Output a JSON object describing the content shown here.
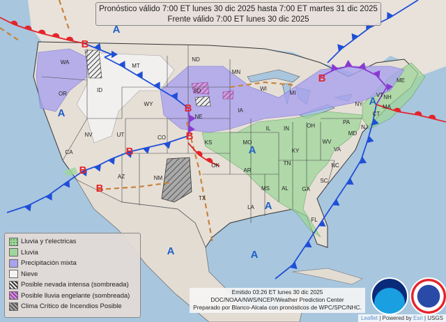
{
  "header": {
    "line1": "Pronóstico válido 7:00 ET lunes 30 dic 2025 hasta 7:00 ET martes 31 dic 2025",
    "line2": "Frente válido 7:00 ET lunes 30 dic 2025"
  },
  "legend": {
    "items": [
      {
        "label": "Lluvia y t'electricas",
        "color": "#9fd69b",
        "pattern": "dots"
      },
      {
        "label": "Lluvia",
        "color": "#9fd69b",
        "pattern": "solid"
      },
      {
        "label": "Precipitación mixta",
        "color": "#a9a3ee",
        "pattern": "solid"
      },
      {
        "label": "Nieve",
        "color": "#f3f3f3",
        "pattern": "solid"
      },
      {
        "label": "Posible nevada intensa (sombreada)",
        "color": "#ffffff",
        "pattern": "hatch-black"
      },
      {
        "label": "Posible lluvia engelante (sombreada)",
        "color": "#c070c8",
        "pattern": "hatch-magenta"
      },
      {
        "label": "Clima Crítico de Incendios Posible",
        "color": "#999999",
        "pattern": "hatch-gray"
      }
    ]
  },
  "pressure_centers": {
    "low_label": "B",
    "high_label": "A",
    "low_color": "#e3242b",
    "high_color": "#1f5fc8"
  },
  "states": [
    "WA",
    "OR",
    "ID",
    "MT",
    "WY",
    "NV",
    "UT",
    "CO",
    "CA",
    "AZ",
    "NM",
    "ND",
    "SD",
    "NE",
    "KS",
    "OK",
    "TX",
    "MN",
    "IA",
    "MO",
    "AR",
    "LA",
    "MS",
    "AL",
    "TN",
    "KY",
    "IL",
    "WI",
    "MI",
    "IN",
    "OH",
    "WV",
    "VA",
    "NC",
    "SC",
    "GA",
    "FL",
    "PA",
    "NY",
    "VT",
    "NH",
    "ME",
    "MA",
    "CT",
    "NJ",
    "MD"
  ],
  "footer": {
    "issued": "Emitido 03:26 ET lunes 30 dic 2025",
    "agency": "DOC/NOAA/NWS/NCEP/Weather Prediction Center",
    "prepared": "Preparado por Blanco-Alcala con pronósticos de WPC/SPC/NHC."
  },
  "logos": {
    "noaa": "NOAA",
    "nws": "NATIONAL WEATHER SERVICE"
  },
  "attribution": {
    "leaflet": "Leaflet",
    "powered": "Powered by",
    "esri": "Esri",
    "usgs": "USGS"
  }
}
